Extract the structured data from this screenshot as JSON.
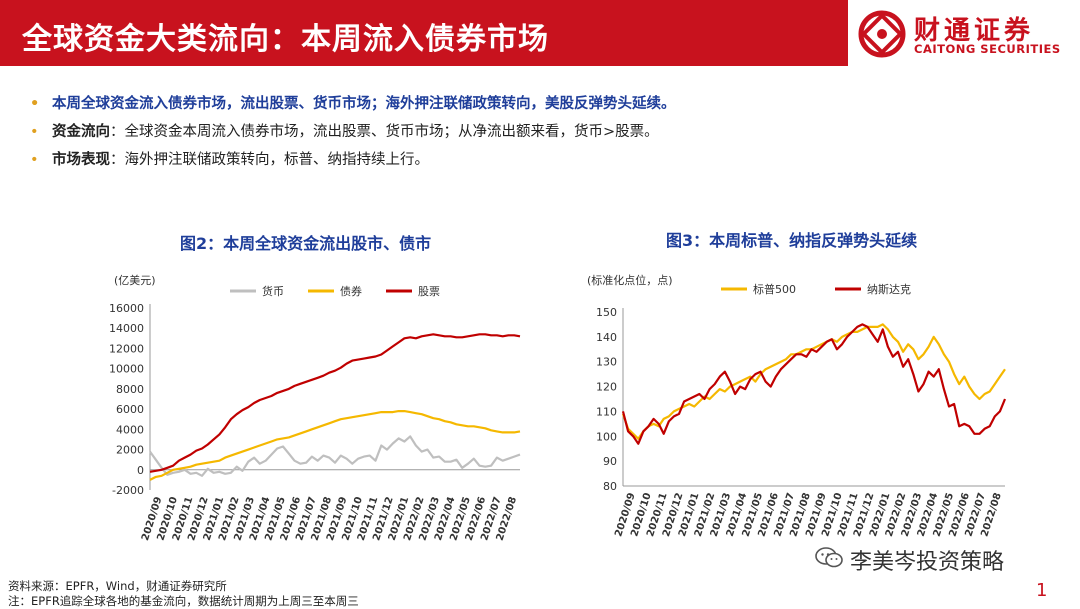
{
  "header": {
    "title": "全球资金大类流向：本周流入债券市场",
    "logo_cn": "财通证券",
    "logo_en": "CAITONG SECURITIES"
  },
  "bullets": {
    "b1": "本周全球资金流入债券市场，流出股票、货币市场；海外押注联储政策转向，美股反弹势头延续。",
    "b2_key": "资金流向",
    "b2_text": "：全球资金本周流入债券市场，流出股票、货币市场；从净流出额来看，货币>股票。",
    "b3_key": "市场表现",
    "b3_text": "：海外押注联储政策转向，标普、纳指持续上行。"
  },
  "footer": {
    "source": "资料来源：EPFR，Wind，财通证券研究所",
    "note": "注：EPFR追踪全球各地的基金流向，数据统计周期为上周三至本周三"
  },
  "watermark": "李美岑投资策略",
  "page_number": "1",
  "colors": {
    "brand_red": "#c8121e",
    "title_blue": "#1f3e9a",
    "series_gray": "#bfbfbf",
    "series_yellow": "#f5b800",
    "series_red": "#c00000"
  },
  "chart_data": [
    {
      "type": "line",
      "title": "图2：本周全球资金流出股市、债市",
      "unit_label": "(亿美元)",
      "ylim": [
        -2000,
        16000
      ],
      "yticks": [
        "-2000",
        "0",
        "2000",
        "4000",
        "6000",
        "8000",
        "10000",
        "12000",
        "14000",
        "16000"
      ],
      "x_labels": [
        "2020/09",
        "2020/10",
        "2020/11",
        "2020/12",
        "2021/01",
        "2021/02",
        "2021/03",
        "2021/04",
        "2021/05",
        "2021/06",
        "2021/07",
        "2021/08",
        "2021/09",
        "2021/10",
        "2021/11",
        "2021/12",
        "2022/01",
        "2022/02",
        "2022/03",
        "2022/04",
        "2022/05",
        "2022/06",
        "2022/07",
        "2022/08"
      ],
      "legend_placement": "top",
      "series": [
        {
          "name": "货币",
          "color": "#bfbfbf",
          "values": [
            1800,
            1000,
            200,
            -500,
            -300,
            -200,
            0,
            -400,
            -300,
            -600,
            100,
            -300,
            -200,
            -400,
            -300,
            300,
            -100,
            800,
            1200,
            600,
            900,
            1500,
            2100,
            2300,
            1600,
            900,
            600,
            700,
            1300,
            900,
            1400,
            1200,
            700,
            1400,
            1100,
            600,
            1100,
            1300,
            1400,
            900,
            2400,
            2000,
            2600,
            3100,
            2800,
            3300,
            2400,
            1800,
            2000,
            1200,
            1300,
            800,
            800,
            1000,
            200,
            600,
            1100,
            400,
            300,
            400,
            1200,
            900,
            1100,
            1300,
            1500
          ]
        },
        {
          "name": "债券",
          "color": "#f5b800",
          "values": [
            -1000,
            -700,
            -600,
            -300,
            0,
            100,
            200,
            300,
            500,
            600,
            700,
            800,
            900,
            1200,
            1400,
            1600,
            1800,
            2000,
            2200,
            2400,
            2600,
            2800,
            3000,
            3100,
            3200,
            3400,
            3600,
            3800,
            4000,
            4200,
            4400,
            4600,
            4800,
            5000,
            5100,
            5200,
            5300,
            5400,
            5500,
            5600,
            5700,
            5700,
            5700,
            5800,
            5800,
            5700,
            5600,
            5500,
            5300,
            5100,
            5000,
            4800,
            4700,
            4500,
            4400,
            4300,
            4300,
            4200,
            4100,
            3900,
            3800,
            3700,
            3700,
            3700,
            3800
          ]
        },
        {
          "name": "股票",
          "color": "#c00000",
          "values": [
            -200,
            -100,
            0,
            200,
            400,
            900,
            1200,
            1500,
            1900,
            2100,
            2500,
            3000,
            3500,
            4200,
            5000,
            5500,
            5900,
            6200,
            6600,
            6900,
            7100,
            7300,
            7600,
            7800,
            8000,
            8300,
            8500,
            8700,
            8900,
            9100,
            9300,
            9600,
            9800,
            10100,
            10500,
            10800,
            10900,
            11000,
            11100,
            11200,
            11400,
            11800,
            12200,
            12600,
            13000,
            13100,
            13000,
            13200,
            13300,
            13400,
            13300,
            13200,
            13200,
            13100,
            13100,
            13200,
            13300,
            13400,
            13400,
            13300,
            13300,
            13200,
            13300,
            13300,
            13200
          ]
        }
      ]
    },
    {
      "type": "line",
      "title": "图3：本周标普、纳指反弹势头延续",
      "unit_label": "(标准化点位，点)",
      "ylim": [
        80,
        150
      ],
      "yticks": [
        "80",
        "90",
        "100",
        "110",
        "120",
        "130",
        "140",
        "150"
      ],
      "x_labels": [
        "2020/09",
        "2020/10",
        "2020/11",
        "2020/12",
        "2021/01",
        "2021/02",
        "2021/03",
        "2021/04",
        "2021/05",
        "2021/06",
        "2021/07",
        "2021/08",
        "2021/09",
        "2021/10",
        "2021/11",
        "2021/12",
        "2022/01",
        "2022/02",
        "2022/03",
        "2022/04",
        "2022/05",
        "2022/06",
        "2022/07",
        "2022/08"
      ],
      "legend_placement": "top",
      "series": [
        {
          "name": "标普500",
          "color": "#f5b800",
          "values": [
            109,
            103,
            101,
            99,
            102,
            104,
            105,
            104,
            107,
            108,
            110,
            111,
            112,
            113,
            112,
            114,
            116,
            115,
            117,
            119,
            118,
            120,
            121,
            122,
            123,
            124,
            122,
            125,
            127,
            128,
            129,
            130,
            131,
            133,
            133,
            134,
            135,
            135,
            136,
            137,
            138,
            139,
            138,
            140,
            141,
            142,
            142,
            143,
            144,
            144,
            144,
            145,
            143,
            140,
            138,
            134,
            137,
            135,
            131,
            133,
            136,
            140,
            137,
            133,
            130,
            125,
            121,
            124,
            120,
            117,
            115,
            117,
            118,
            121,
            124,
            127
          ]
        },
        {
          "name": "纳斯达克",
          "color": "#c00000",
          "values": [
            110,
            102,
            100,
            97,
            102,
            104,
            107,
            105,
            101,
            106,
            108,
            109,
            114,
            115,
            116,
            117,
            115,
            119,
            121,
            124,
            126,
            122,
            117,
            120,
            119,
            123,
            125,
            126,
            122,
            120,
            124,
            127,
            129,
            131,
            133,
            133,
            132,
            135,
            134,
            136,
            138,
            139,
            135,
            137,
            140,
            142,
            144,
            145,
            144,
            141,
            138,
            143,
            136,
            132,
            134,
            128,
            131,
            125,
            118,
            121,
            126,
            124,
            127,
            119,
            112,
            113,
            104,
            105,
            104,
            101,
            101,
            103,
            104,
            108,
            110,
            115
          ]
        }
      ]
    }
  ]
}
